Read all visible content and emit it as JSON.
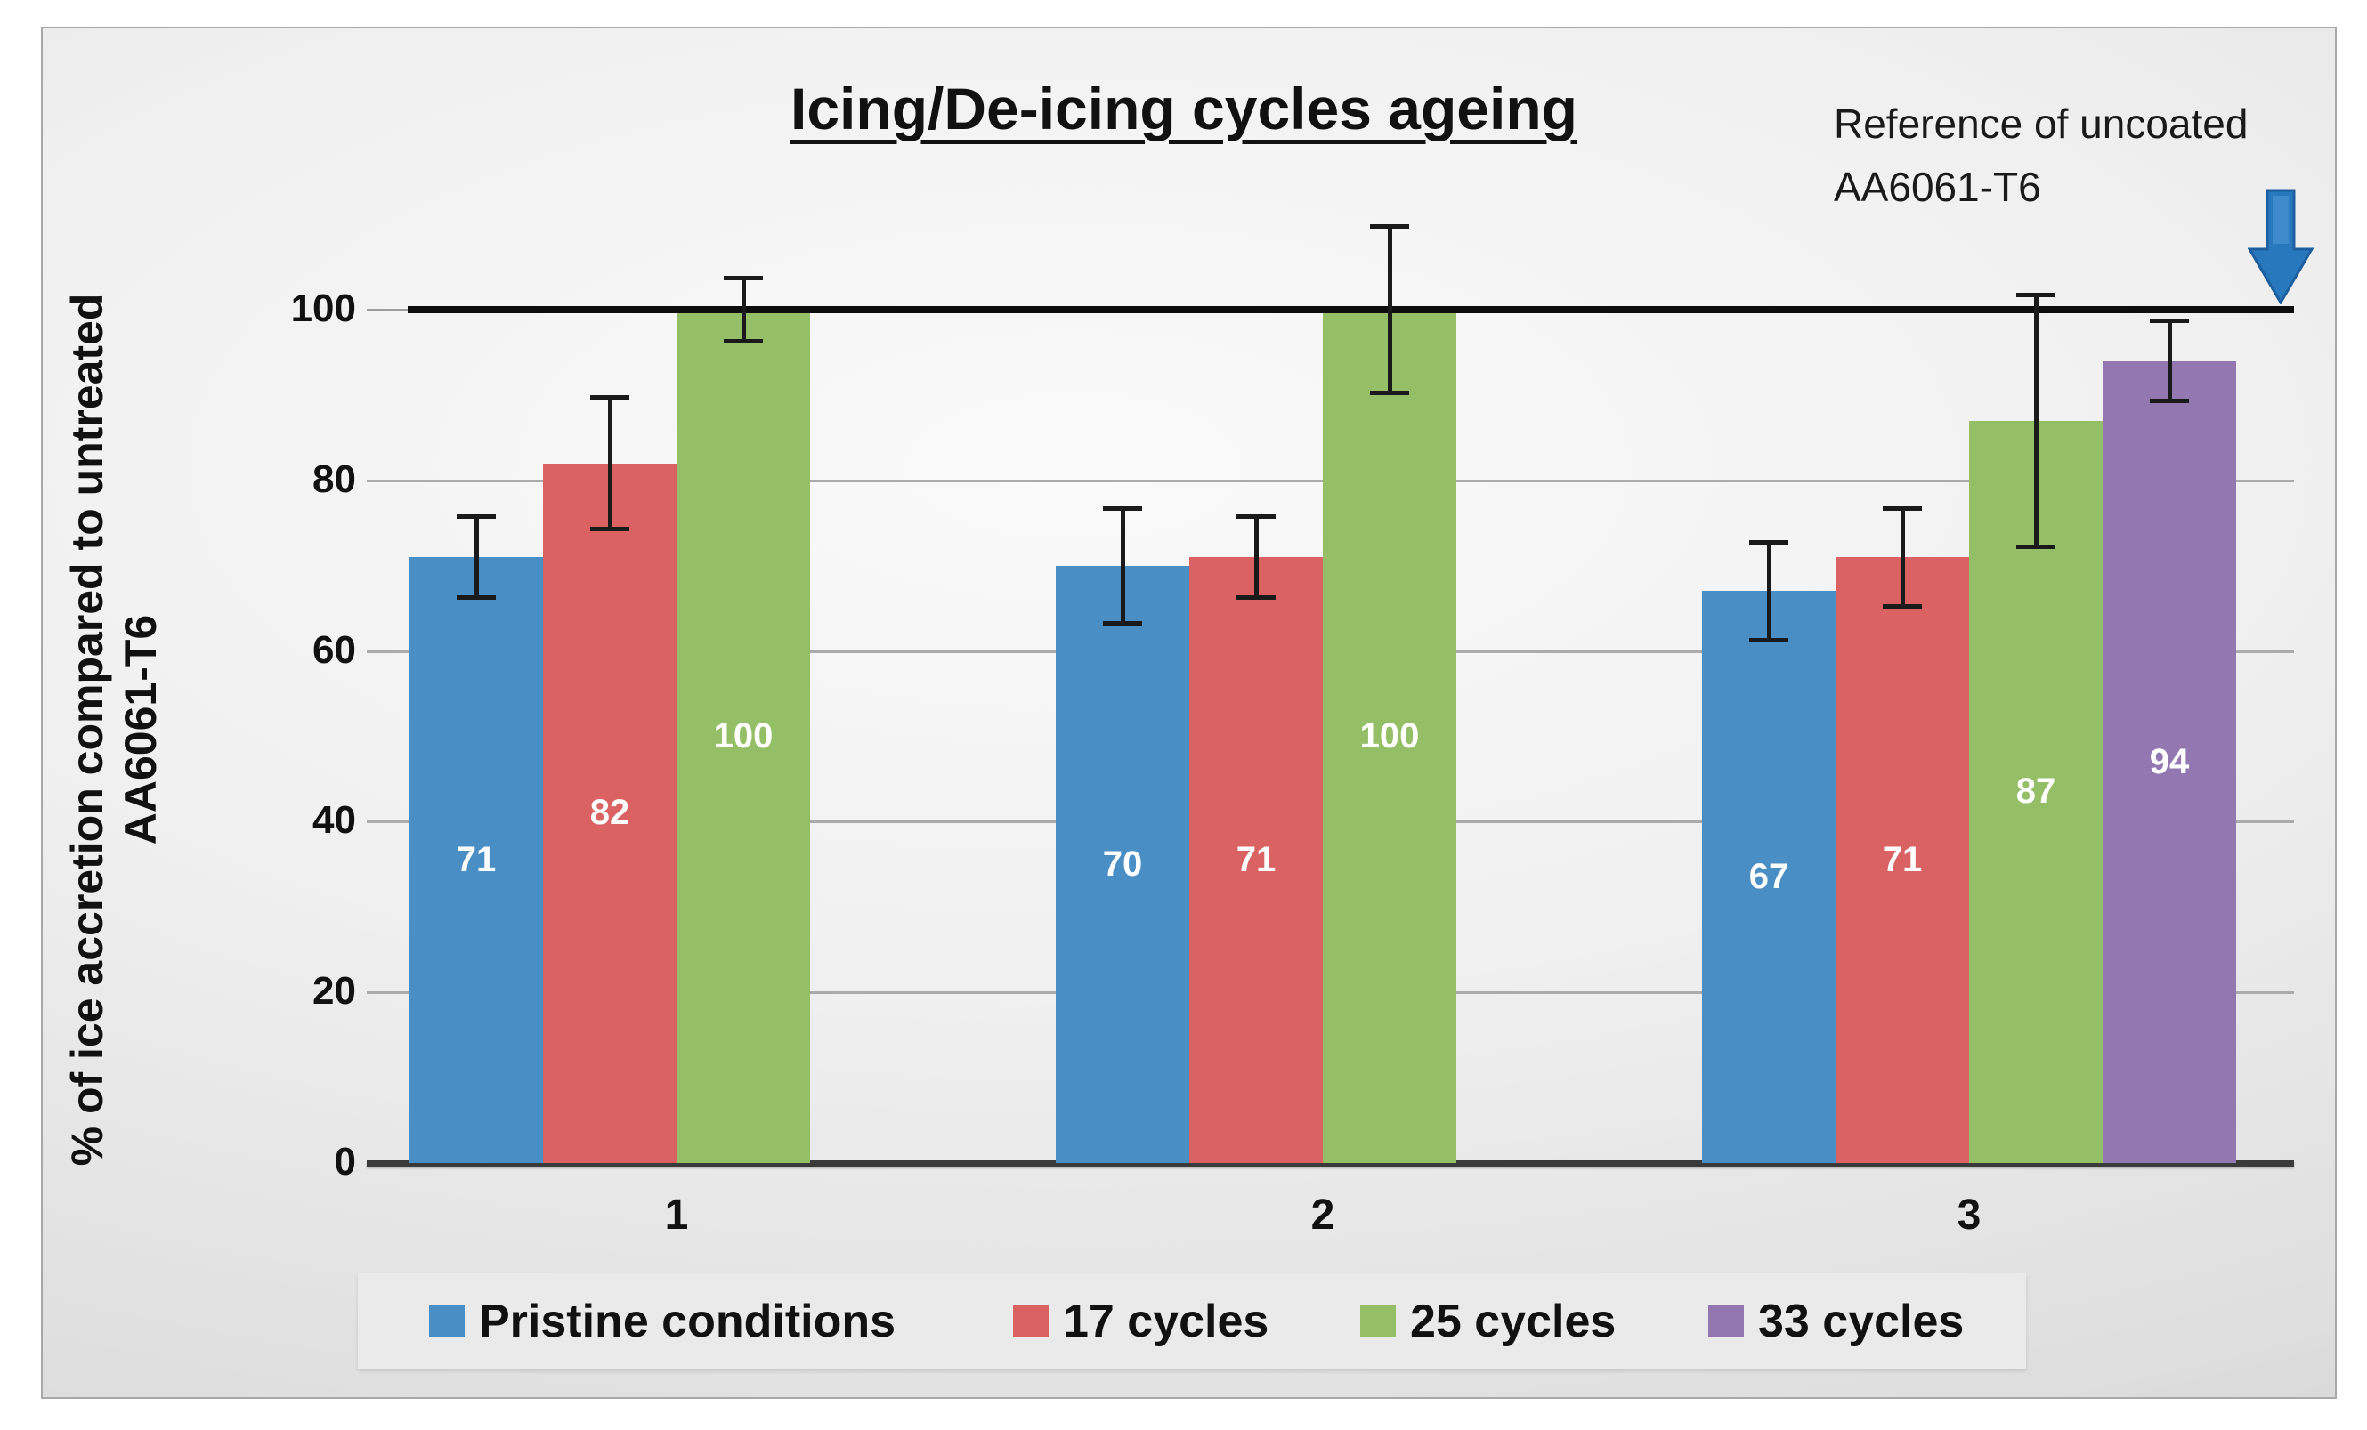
{
  "chart_data": {
    "type": "bar",
    "title": "Icing/De-icing cycles ageing",
    "ylabel_line1": "% of ice accretion compared to untreated",
    "ylabel_line2": "AA6061-T6",
    "xlabel": "",
    "categories": [
      "1",
      "2",
      "3"
    ],
    "series": [
      {
        "name": "Pristine conditions",
        "color": "#4A8EC6",
        "values": [
          71,
          70,
          67
        ],
        "errors": [
          5,
          7,
          6
        ]
      },
      {
        "name": "17 cycles",
        "color": "#DB6262",
        "values": [
          82,
          71,
          71
        ],
        "errors": [
          8,
          5,
          6
        ]
      },
      {
        "name": "25 cycles",
        "color": "#95BF67",
        "values": [
          100,
          100,
          87
        ],
        "errors": [
          4,
          10,
          15
        ]
      },
      {
        "name": "33 cycles",
        "color": "#9277B1",
        "values": [
          null,
          null,
          94
        ],
        "errors": [
          null,
          null,
          5
        ]
      }
    ],
    "yticks": [
      0,
      20,
      40,
      60,
      80,
      100
    ],
    "ylim": [
      0,
      110
    ],
    "grid": true,
    "legend_position": "bottom",
    "bar_labels_shown": true,
    "error_bars_shown": true,
    "reference_line": {
      "value": 100,
      "color": "#0d0d0d"
    }
  },
  "annotation": {
    "line1": "Reference of uncoated",
    "line2": "AA6061-T6",
    "arrow_color": "#2878BE"
  },
  "colors": {
    "grid": "#ababab",
    "axis": "#3a3a3a",
    "error_bar": "#1a1a1a",
    "legend_background": "#eaeaea"
  }
}
